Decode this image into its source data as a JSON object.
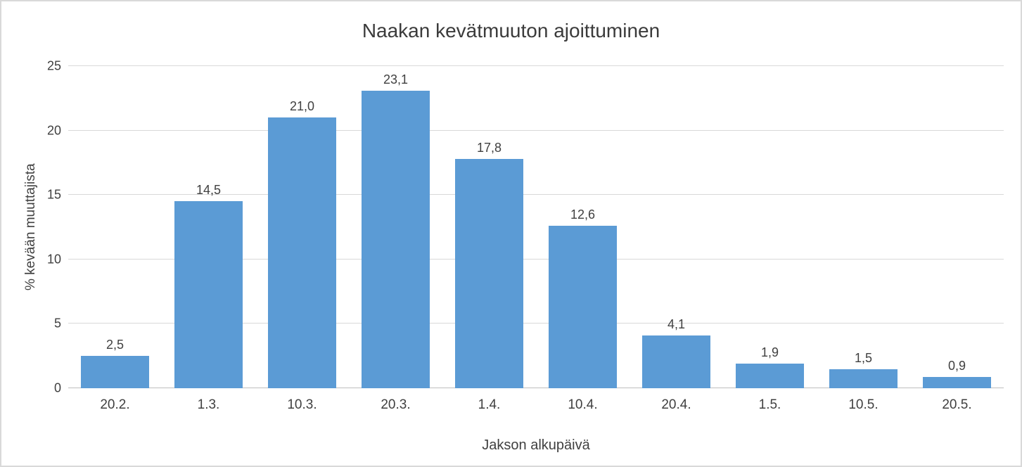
{
  "chart_data": {
    "type": "bar",
    "title": "Naakan kevätmuuton ajoittuminen",
    "xlabel": "Jakson alkupäivä",
    "ylabel": "% kevään muuttajista",
    "categories": [
      "20.2.",
      "1.3.",
      "10.3.",
      "20.3.",
      "1.4.",
      "10.4.",
      "20.4.",
      "1.5.",
      "10.5.",
      "20.5."
    ],
    "values": [
      2.5,
      14.5,
      21.0,
      23.1,
      17.8,
      12.6,
      4.1,
      1.9,
      1.5,
      0.9
    ],
    "value_labels": [
      "2,5",
      "14,5",
      "21,0",
      "23,1",
      "17,8",
      "12,6",
      "4,1",
      "1,9",
      "1,5",
      "0,9"
    ],
    "ylim": [
      0,
      25
    ],
    "yticks": [
      0,
      5,
      10,
      15,
      20,
      25
    ],
    "bar_color": "#5b9bd5",
    "gridline_color": "#d9d9d9",
    "axis_line_color": "#bfbfbf",
    "grid": true,
    "legend": false
  }
}
